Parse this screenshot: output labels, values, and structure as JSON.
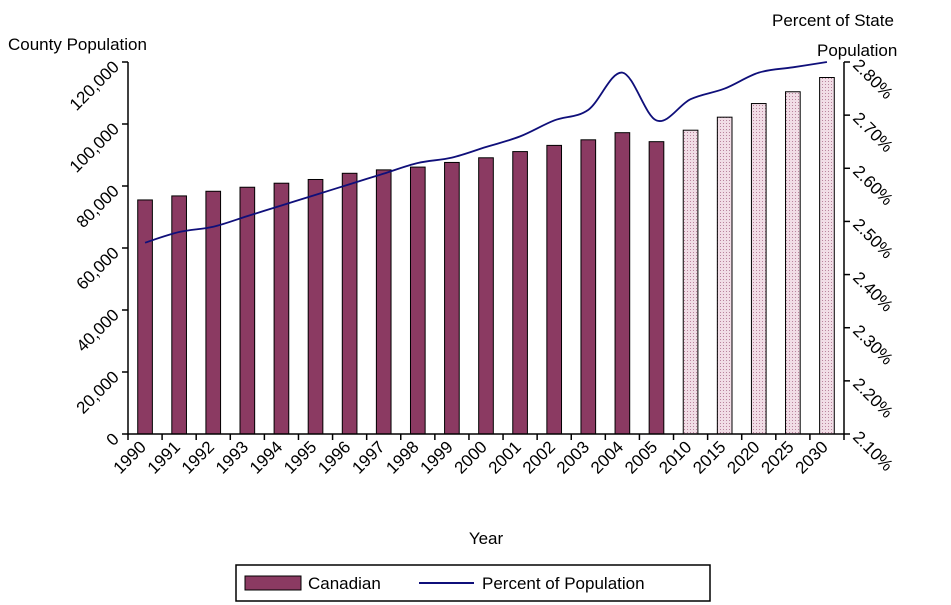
{
  "chart_data": {
    "type": "bar",
    "y_axis_title": "County Population",
    "y2_axis_title_line1": "Percent of State",
    "y2_axis_title_line2": "Population",
    "x_axis_title": "Year",
    "categories": [
      "1990",
      "1991",
      "1992",
      "1993",
      "1994",
      "1995",
      "1996",
      "1997",
      "1998",
      "1999",
      "2000",
      "2001",
      "2002",
      "2003",
      "2004",
      "2005",
      "2010",
      "2015",
      "2020",
      "2025",
      "2030"
    ],
    "y_ticks": [
      "0",
      "20,000",
      "40,000",
      "60,000",
      "80,000",
      "100,000",
      "120,000"
    ],
    "y2_ticks": [
      "2.10%",
      "2.20%",
      "2.30%",
      "2.40%",
      "2.50%",
      "2.60%",
      "2.70%",
      "2.80%"
    ],
    "ylim": [
      0,
      120000
    ],
    "y2lim": [
      2.1,
      2.8
    ],
    "series": [
      {
        "name": "Canadian",
        "type": "bar",
        "color": "#8b3a62",
        "values": [
          75500,
          76800,
          78300,
          79600,
          80900,
          82100,
          84100,
          85200,
          86100,
          87600,
          89100,
          91100,
          93100,
          94900,
          97200,
          94300,
          98000,
          102200,
          106600,
          110400,
          115000
        ],
        "projected_from_index": 16,
        "projected_color": "#e6cad6"
      },
      {
        "name": "Percent of Population",
        "type": "line",
        "color": "#0f0f7a",
        "axis": "secondary",
        "values": [
          2.46,
          2.48,
          2.49,
          2.51,
          2.53,
          2.55,
          2.57,
          2.59,
          2.61,
          2.62,
          2.64,
          2.66,
          2.69,
          2.71,
          2.78,
          2.69,
          2.73,
          2.75,
          2.78,
          2.79,
          2.8
        ]
      }
    ],
    "legend": {
      "placement": "bottom",
      "items": [
        "Canadian",
        "Percent of Population"
      ]
    }
  }
}
